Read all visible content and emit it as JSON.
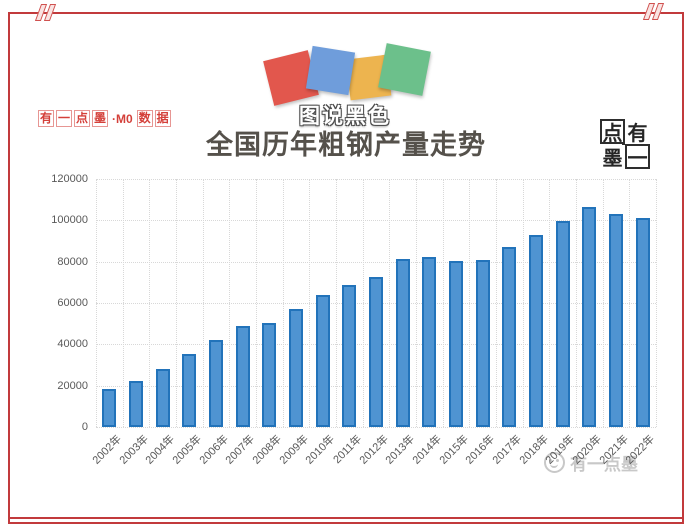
{
  "frame": {
    "color": "#c23a3c"
  },
  "logo": {
    "text": "图说黑色",
    "squares": [
      {
        "name": "red",
        "color": "#e2574d"
      },
      {
        "name": "blue",
        "color": "#6f9ddb"
      },
      {
        "name": "yellow",
        "color": "#edb44f"
      },
      {
        "name": "green",
        "color": "#6cc08b"
      }
    ]
  },
  "brand_left": {
    "boxed_prefix": "有一点墨",
    "mid": "·M0",
    "boxed_suffix": "数据",
    "color": "#d4403a"
  },
  "title": "全国历年粗钢产量走势",
  "stamp": {
    "cells": [
      {
        "char": "点",
        "boxed": true
      },
      {
        "char": "有",
        "boxed": false
      },
      {
        "char": "墨",
        "boxed": false
      },
      {
        "char": "一",
        "boxed": true
      }
    ]
  },
  "watermark": {
    "text": "有一点墨"
  },
  "chart_data": {
    "type": "bar",
    "title": "全国历年粗钢产量走势",
    "categories": [
      "2002年",
      "2003年",
      "2004年",
      "2005年",
      "2006年",
      "2007年",
      "2008年",
      "2009年",
      "2010年",
      "2011年",
      "2012年",
      "2013年",
      "2014年",
      "2015年",
      "2016年",
      "2017年",
      "2018年",
      "2019年",
      "2020年",
      "2021年",
      "2022年"
    ],
    "values": [
      18225,
      22234,
      28291,
      35324,
      41915,
      48929,
      50306,
      57218,
      63723,
      68528,
      72388,
      81313,
      82231,
      80383,
      80761,
      87074,
      92826,
      99634,
      106477,
      103279,
      101300
    ],
    "xlabel": "",
    "ylabel": "",
    "ylim": [
      0,
      120000
    ],
    "yticks": [
      0,
      20000,
      40000,
      60000,
      80000,
      100000,
      120000
    ],
    "grid": true,
    "legend": false,
    "bar_fill": "#4f94d2",
    "bar_stroke": "#2273ba"
  }
}
